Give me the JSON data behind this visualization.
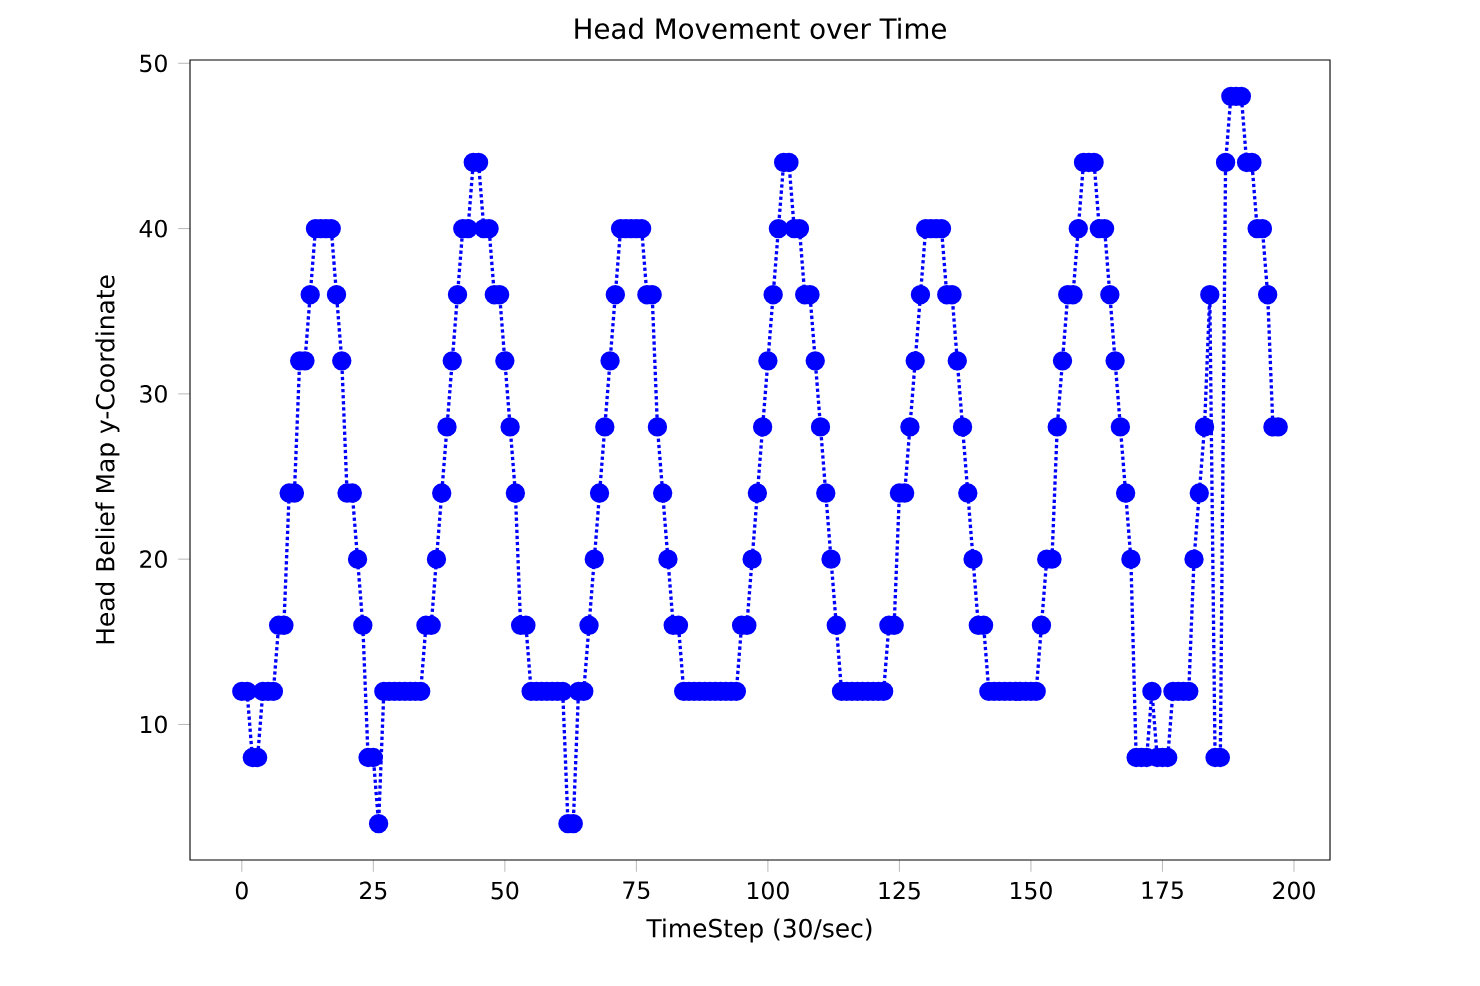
{
  "chart_data": {
    "type": "line",
    "title": "Head Movement over Time",
    "xlabel": "TimeStep (30/sec)",
    "ylabel": "Head Belief Map y-Coordinate",
    "x": [
      0,
      1,
      2,
      3,
      4,
      5,
      6,
      7,
      8,
      9,
      10,
      11,
      12,
      13,
      14,
      15,
      16,
      17,
      18,
      19,
      20,
      21,
      22,
      23,
      24,
      25,
      26,
      27,
      28,
      29,
      30,
      31,
      32,
      33,
      34,
      35,
      36,
      37,
      38,
      39,
      40,
      41,
      42,
      43,
      44,
      45,
      46,
      47,
      48,
      49,
      50,
      51,
      52,
      53,
      54,
      55,
      56,
      57,
      58,
      59,
      60,
      61,
      62,
      63,
      64,
      65,
      66,
      67,
      68,
      69,
      70,
      71,
      72,
      73,
      74,
      75,
      76,
      77,
      78,
      79,
      80,
      81,
      82,
      83,
      84,
      85,
      86,
      87,
      88,
      89,
      90,
      91,
      92,
      93,
      94,
      95,
      96,
      97,
      98,
      99,
      100,
      101,
      102,
      103,
      104,
      105,
      106,
      107,
      108,
      109,
      110,
      111,
      112,
      113,
      114,
      115,
      116,
      117,
      118,
      119,
      120,
      121,
      122,
      123,
      124,
      125,
      126,
      127,
      128,
      129,
      130,
      131,
      132,
      133,
      134,
      135,
      136,
      137,
      138,
      139,
      140,
      141,
      142,
      143,
      144,
      145,
      146,
      147,
      148,
      149,
      150,
      151,
      152,
      153,
      154,
      155,
      156,
      157,
      158,
      159,
      160,
      161,
      162,
      163,
      164,
      165,
      166,
      167,
      168,
      169,
      170,
      171,
      172,
      173,
      174,
      175,
      176,
      177,
      178,
      179,
      180,
      181,
      182,
      183,
      184,
      185,
      186,
      187,
      188,
      189,
      190,
      191,
      192,
      193,
      194,
      195,
      196,
      197
    ],
    "values": [
      12,
      12,
      8,
      8,
      12,
      12,
      12,
      16,
      16,
      24,
      24,
      32,
      32,
      36,
      40,
      40,
      40,
      40,
      36,
      32,
      24,
      24,
      20,
      16,
      8,
      8,
      4,
      12,
      12,
      12,
      12,
      12,
      12,
      12,
      12,
      16,
      16,
      20,
      24,
      28,
      32,
      36,
      40,
      40,
      44,
      44,
      40,
      40,
      36,
      36,
      32,
      28,
      24,
      16,
      16,
      12,
      12,
      12,
      12,
      12,
      12,
      12,
      4,
      4,
      12,
      12,
      16,
      20,
      24,
      28,
      32,
      36,
      40,
      40,
      40,
      40,
      40,
      36,
      36,
      28,
      24,
      20,
      16,
      16,
      12,
      12,
      12,
      12,
      12,
      12,
      12,
      12,
      12,
      12,
      12,
      16,
      16,
      20,
      24,
      28,
      32,
      36,
      40,
      44,
      44,
      40,
      40,
      36,
      36,
      32,
      28,
      24,
      20,
      16,
      12,
      12,
      12,
      12,
      12,
      12,
      12,
      12,
      12,
      16,
      16,
      24,
      24,
      28,
      32,
      36,
      40,
      40,
      40,
      40,
      36,
      36,
      32,
      28,
      24,
      20,
      16,
      16,
      12,
      12,
      12,
      12,
      12,
      12,
      12,
      12,
      12,
      12,
      16,
      20,
      20,
      28,
      32,
      36,
      36,
      40,
      44,
      44,
      44,
      40,
      40,
      36,
      32,
      28,
      24,
      20,
      8,
      8,
      8,
      12,
      8,
      8,
      8,
      12,
      12,
      12,
      12,
      20,
      24,
      28,
      36,
      8,
      8,
      44,
      48,
      48,
      48,
      44,
      44,
      40,
      40,
      36,
      28,
      28
    ],
    "color": "#0000ff",
    "marker": "circle",
    "line_style": "dotted",
    "grid": false,
    "xlim": [
      -9.85,
      206.85
    ],
    "ylim": [
      1.8,
      50.2
    ],
    "xticks": [
      0,
      25,
      50,
      75,
      100,
      125,
      150,
      175,
      200
    ],
    "yticks": [
      10,
      20,
      30,
      40,
      50
    ]
  }
}
